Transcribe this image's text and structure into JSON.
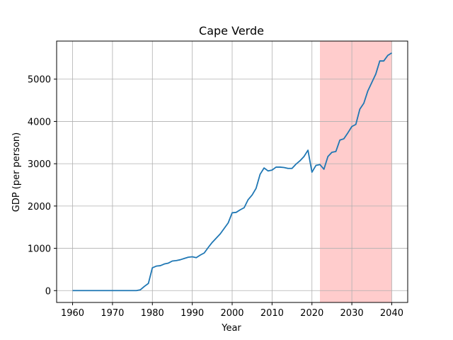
{
  "chart_data": {
    "type": "line",
    "title": "Cape Verde",
    "xlabel": "Year",
    "ylabel": "GDP (per person)",
    "xlim": [
      1956,
      2044
    ],
    "ylim": [
      -280,
      5900
    ],
    "xticks": [
      1960,
      1970,
      1980,
      1990,
      2000,
      2010,
      2020,
      2030,
      2040
    ],
    "yticks": [
      0,
      1000,
      2000,
      3000,
      4000,
      5000
    ],
    "grid": true,
    "line_color": "#1f77b4",
    "highlight": {
      "x_start": 2022,
      "x_end": 2040,
      "color": "#ffcccc"
    },
    "series": [
      {
        "x": [
          1960,
          1961,
          1962,
          1963,
          1964,
          1965,
          1966,
          1967,
          1968,
          1969,
          1970,
          1971,
          1972,
          1973,
          1974,
          1975,
          1976,
          1977,
          1978,
          1979,
          1980,
          1981,
          1982,
          1983,
          1984,
          1985,
          1986,
          1987,
          1988,
          1989,
          1990,
          1991,
          1992,
          1993,
          1994,
          1995,
          1996,
          1997,
          1998,
          1999,
          2000,
          2001,
          2002,
          2003,
          2004,
          2005,
          2006,
          2007,
          2008,
          2009,
          2010,
          2011,
          2012,
          2013,
          2014,
          2015,
          2016,
          2017,
          2018,
          2019,
          2020,
          2021,
          2022,
          2023,
          2024,
          2025,
          2026,
          2027,
          2028,
          2029,
          2030,
          2031,
          2032,
          2033,
          2034,
          2035,
          2036,
          2037,
          2038,
          2039,
          2040
        ],
        "y": [
          0,
          0,
          0,
          0,
          0,
          0,
          0,
          0,
          0,
          0,
          0,
          0,
          0,
          0,
          0,
          0,
          0,
          20,
          100,
          170,
          540,
          580,
          590,
          630,
          650,
          700,
          710,
          730,
          760,
          790,
          800,
          780,
          840,
          890,
          1020,
          1140,
          1240,
          1340,
          1470,
          1600,
          1840,
          1850,
          1910,
          1960,
          2150,
          2260,
          2420,
          2750,
          2900,
          2830,
          2850,
          2920,
          2920,
          2910,
          2890,
          2890,
          2990,
          3070,
          3170,
          3320,
          2800,
          2960,
          2980,
          2870,
          3170,
          3270,
          3290,
          3560,
          3590,
          3730,
          3880,
          3930,
          4290,
          4430,
          4720,
          4920,
          5120,
          5430,
          5430,
          5560,
          5620
        ]
      }
    ]
  }
}
